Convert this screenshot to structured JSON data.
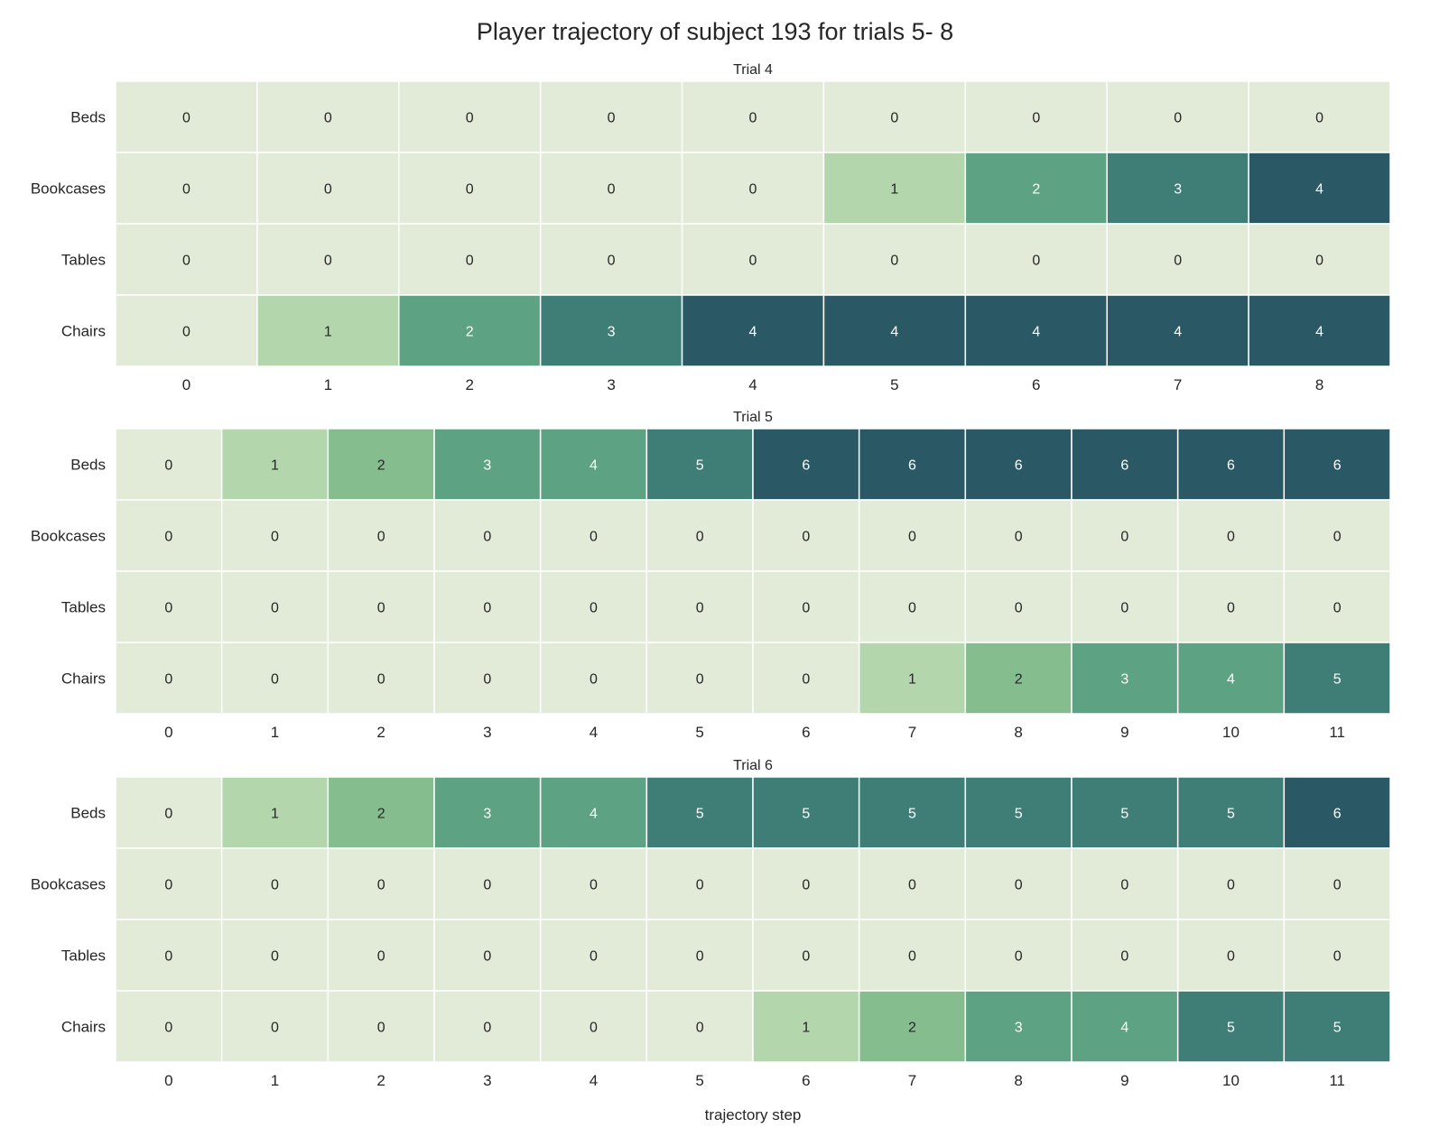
{
  "chart_data": {
    "type": "heatmap",
    "title": "Player trajectory of subject 193 for trials 5- 8",
    "xlabel": "trajectory step",
    "rows": [
      "Beds",
      "Bookcases",
      "Tables",
      "Chairs"
    ],
    "colormap": [
      "#e2ebd8",
      "#b3d6ad",
      "#86bd8f",
      "#5da383",
      "#3e7e77",
      "#2a5864"
    ],
    "cell_border_color": "#ffffff",
    "panels": [
      {
        "title": "Trial 4",
        "x": [
          0,
          1,
          2,
          3,
          4,
          5,
          6,
          7,
          8
        ],
        "values": [
          [
            0,
            0,
            0,
            0,
            0,
            0,
            0,
            0,
            0
          ],
          [
            0,
            0,
            0,
            0,
            0,
            1,
            2,
            3,
            4
          ],
          [
            0,
            0,
            0,
            0,
            0,
            0,
            0,
            0,
            0
          ],
          [
            0,
            1,
            2,
            3,
            4,
            4,
            4,
            4,
            4
          ]
        ]
      },
      {
        "title": "Trial 5",
        "x": [
          0,
          1,
          2,
          3,
          4,
          5,
          6,
          7,
          8,
          9,
          10,
          11
        ],
        "values": [
          [
            0,
            1,
            2,
            3,
            4,
            5,
            6,
            6,
            6,
            6,
            6,
            6
          ],
          [
            0,
            0,
            0,
            0,
            0,
            0,
            0,
            0,
            0,
            0,
            0,
            0
          ],
          [
            0,
            0,
            0,
            0,
            0,
            0,
            0,
            0,
            0,
            0,
            0,
            0
          ],
          [
            0,
            0,
            0,
            0,
            0,
            0,
            0,
            1,
            2,
            3,
            4,
            5
          ]
        ]
      },
      {
        "title": "Trial 6",
        "x": [
          0,
          1,
          2,
          3,
          4,
          5,
          6,
          7,
          8,
          9,
          10,
          11
        ],
        "values": [
          [
            0,
            1,
            2,
            3,
            4,
            5,
            5,
            5,
            5,
            5,
            5,
            6
          ],
          [
            0,
            0,
            0,
            0,
            0,
            0,
            0,
            0,
            0,
            0,
            0,
            0
          ],
          [
            0,
            0,
            0,
            0,
            0,
            0,
            0,
            0,
            0,
            0,
            0,
            0
          ],
          [
            0,
            0,
            0,
            0,
            0,
            0,
            1,
            2,
            3,
            4,
            5,
            5
          ]
        ]
      }
    ]
  }
}
